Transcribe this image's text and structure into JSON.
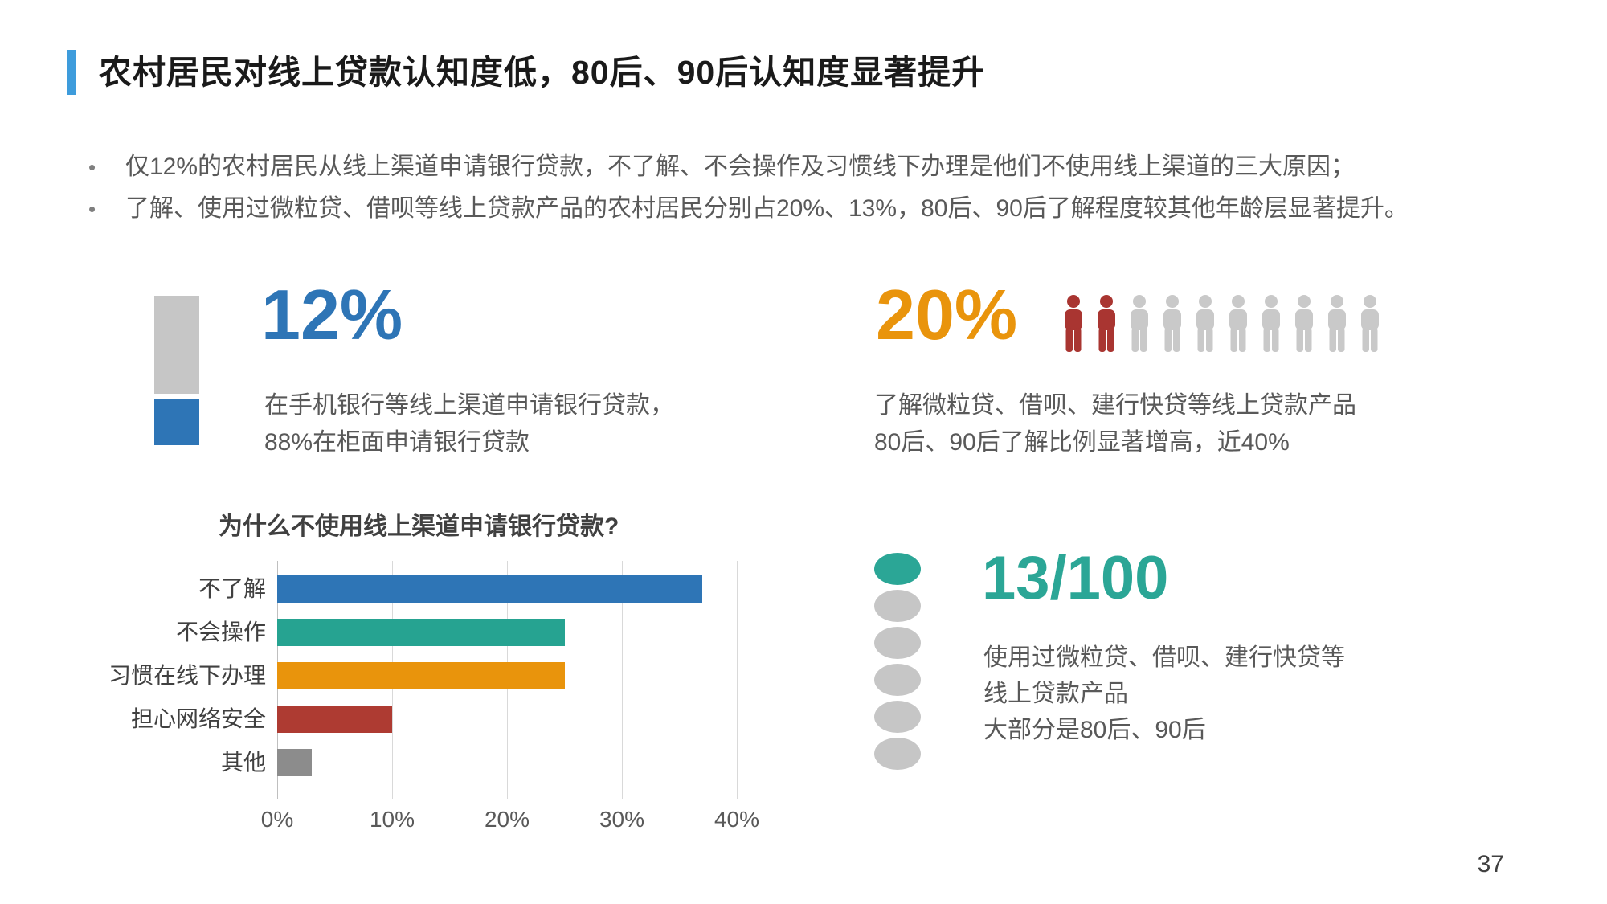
{
  "header": {
    "title": "农村居民对线上贷款认知度低，80后、90后认知度显著提升"
  },
  "bullets": [
    "仅12%的农村居民从线上渠道申请银行贷款，不了解、不会操作及习惯线下办理是他们不使用线上渠道的三大原因；",
    "了解、使用过微粒贷、借呗等线上贷款产品的农村居民分别占20%、13%，80后、90后了解程度较其他年龄层显著提升。"
  ],
  "stat_online": {
    "value": "12%",
    "color": "#2E75B6",
    "desc_lines": [
      "在手机银行等线上渠道申请银行贷款，",
      "88%在柜面申请银行贷款"
    ]
  },
  "stat_aware": {
    "value": "20%",
    "color": "#E9940C",
    "icons_total": 10,
    "icons_highlighted": 2,
    "icon_highlight_color": "#A93531",
    "icon_muted_color": "#C9C9C9",
    "desc_lines": [
      "了解微粒贷、借呗、建行快贷等线上贷款产品",
      "80后、90后了解比例显著增高，近40%"
    ]
  },
  "stat_used": {
    "value": "13/100",
    "color": "#2BA696",
    "dots_total": 6,
    "dots_highlighted": 1,
    "dot_highlight_color": "#2BA696",
    "dot_muted_color": "#C6C6C6",
    "desc_lines": [
      "使用过微粒贷、借呗、建行快贷等",
      "线上贷款产品",
      "大部分是80后、90后"
    ]
  },
  "chart_data": {
    "type": "bar",
    "orientation": "horizontal",
    "title": "为什么不使用线上渠道申请银行贷款?",
    "categories": [
      "不了解",
      "不会操作",
      "习惯在线下办理",
      "担心网络安全",
      "其他"
    ],
    "values": [
      37,
      25,
      25,
      10,
      3
    ],
    "bar_colors": [
      "#2E75B6",
      "#26A391",
      "#E9940C",
      "#AE3B32",
      "#8C8C8C"
    ],
    "xlabel": "",
    "ylabel": "",
    "xlim": [
      0,
      40
    ],
    "x_ticks": [
      "0%",
      "10%",
      "20%",
      "30%",
      "40%"
    ],
    "grid": true,
    "legend": false
  },
  "page": {
    "number": "37"
  }
}
